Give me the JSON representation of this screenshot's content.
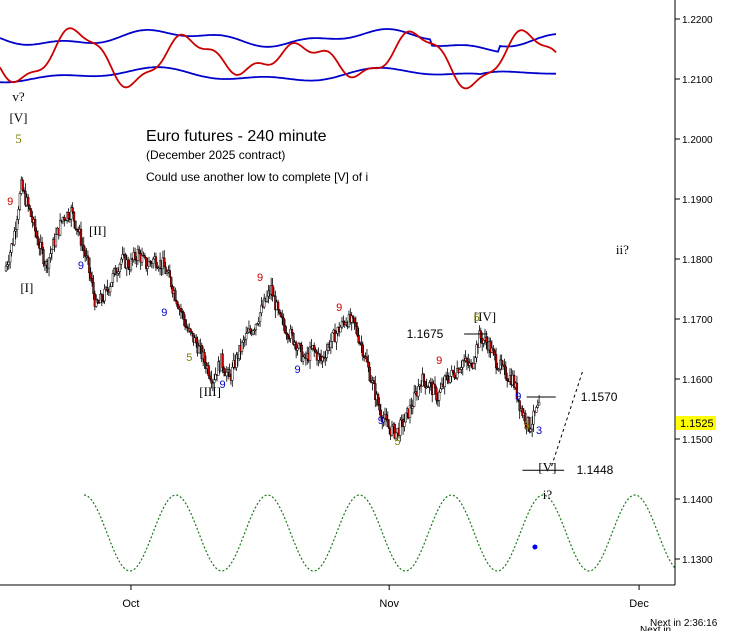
{
  "chart_data": {
    "type": "candlestick",
    "title": "Euro futures - 240 minute",
    "subtitle": "(December 2025 contract)",
    "note": "Could use another low to complete [V] of i",
    "y_axis": {
      "ylim": [
        1.125,
        1.2245
      ],
      "ticks": [
        "1.2200",
        "1.2100",
        "1.2000",
        "1.1900",
        "1.1800",
        "1.1700",
        "1.1600",
        "1.1500",
        "1.1400",
        "1.1300"
      ],
      "position": "right"
    },
    "x_axis": {
      "ticks": [
        {
          "label": "Oct",
          "day": 15
        },
        {
          "label": "Nov",
          "day": 46
        },
        {
          "label": "Dec",
          "day": 76
        }
      ],
      "cut_label": "Next in 2:36:16",
      "corner_label": "Next in"
    },
    "current_price": {
      "label": "1.1525",
      "value": 1.1525,
      "color": "#ffff00"
    },
    "price_path": [
      [
        0,
        1.178
      ],
      [
        1,
        1.183
      ],
      [
        2,
        1.192
      ],
      [
        3,
        1.188
      ],
      [
        4,
        1.183
      ],
      [
        5,
        1.179
      ],
      [
        6,
        1.183
      ],
      [
        7,
        1.187
      ],
      [
        8,
        1.188
      ],
      [
        9,
        1.184
      ],
      [
        10,
        1.179
      ],
      [
        11,
        1.172
      ],
      [
        12,
        1.174
      ],
      [
        13,
        1.177
      ],
      [
        14,
        1.18
      ],
      [
        15,
        1.179
      ],
      [
        16,
        1.181
      ],
      [
        17,
        1.179
      ],
      [
        18,
        1.18
      ],
      [
        19,
        1.179
      ],
      [
        20,
        1.176
      ],
      [
        21,
        1.172
      ],
      [
        22,
        1.168
      ],
      [
        23,
        1.166
      ],
      [
        24,
        1.163
      ],
      [
        25,
        1.16
      ],
      [
        26,
        1.163
      ],
      [
        27,
        1.16
      ],
      [
        28,
        1.164
      ],
      [
        29,
        1.167
      ],
      [
        30,
        1.169
      ],
      [
        31,
        1.172
      ],
      [
        32,
        1.175
      ],
      [
        33,
        1.17
      ],
      [
        34,
        1.168
      ],
      [
        35,
        1.166
      ],
      [
        36,
        1.163
      ],
      [
        37,
        1.165
      ],
      [
        38,
        1.163
      ],
      [
        39,
        1.166
      ],
      [
        40,
        1.168
      ],
      [
        41,
        1.17
      ],
      [
        42,
        1.169
      ],
      [
        43,
        1.165
      ],
      [
        44,
        1.16
      ],
      [
        45,
        1.155
      ],
      [
        46,
        1.152
      ],
      [
        47,
        1.151
      ],
      [
        48,
        1.153
      ],
      [
        49,
        1.156
      ],
      [
        50,
        1.16
      ],
      [
        51,
        1.159
      ],
      [
        52,
        1.157
      ],
      [
        53,
        1.16
      ],
      [
        54,
        1.161
      ],
      [
        55,
        1.163
      ],
      [
        56,
        1.162
      ],
      [
        57,
        1.167
      ],
      [
        58,
        1.166
      ],
      [
        59,
        1.163
      ],
      [
        60,
        1.161
      ],
      [
        61,
        1.16
      ],
      [
        62,
        1.155
      ],
      [
        63,
        1.152
      ],
      [
        64,
        1.155
      ]
    ],
    "series": [
      {
        "name": "",
        "color": "#cc0000",
        "kind": "oscillator"
      },
      {
        "name": "",
        "color": "#0000cc",
        "kind": "band"
      },
      {
        "name": "",
        "color": "#1a7a1a",
        "kind": "cycle"
      }
    ],
    "wave_labels": [
      {
        "text": "v?",
        "day": 1.5,
        "price": 1.2063,
        "color": "#000000"
      },
      {
        "text": "[V]",
        "day": 1.5,
        "price": 1.2028,
        "color": "#000000"
      },
      {
        "text": "5",
        "day": 1.5,
        "price": 1.1993,
        "color": "#808000"
      },
      {
        "text": "[I]",
        "day": 2.5,
        "price": 1.1745,
        "color": "#000000"
      },
      {
        "text": "[II]",
        "day": 11.0,
        "price": 1.184,
        "color": "#000000"
      },
      {
        "text": "[III]",
        "day": 24.5,
        "price": 1.1572,
        "color": "#000000"
      },
      {
        "text": "[IV]",
        "day": 57.5,
        "price": 1.1697,
        "color": "#000000"
      },
      {
        "text": "[V]",
        "day": 65.0,
        "price": 1.1446,
        "color": "#000000"
      },
      {
        "text": "i?",
        "day": 65.0,
        "price": 1.14,
        "color": "#000000"
      },
      {
        "text": "ii?",
        "day": 74.0,
        "price": 1.1808,
        "color": "#000000"
      }
    ],
    "count_labels": [
      {
        "text": "9",
        "day": 0.5,
        "price": 1.189,
        "color": "#cc0000"
      },
      {
        "text": "9",
        "day": 9.0,
        "price": 1.1783,
        "color": "#0000cc"
      },
      {
        "text": "9",
        "day": 19.0,
        "price": 1.1705,
        "color": "#0000cc"
      },
      {
        "text": "5",
        "day": 22.0,
        "price": 1.163,
        "color": "#808000"
      },
      {
        "text": "9",
        "day": 26.0,
        "price": 1.1585,
        "color": "#0000cc"
      },
      {
        "text": "9",
        "day": 30.5,
        "price": 1.1763,
        "color": "#cc0000"
      },
      {
        "text": "9",
        "day": 35.0,
        "price": 1.161,
        "color": "#0000cc"
      },
      {
        "text": "9",
        "day": 40.0,
        "price": 1.1713,
        "color": "#cc0000"
      },
      {
        "text": "9",
        "day": 45.0,
        "price": 1.1525,
        "color": "#0000cc"
      },
      {
        "text": "5",
        "day": 47.0,
        "price": 1.149,
        "color": "#808000"
      },
      {
        "text": "9",
        "day": 52.0,
        "price": 1.1625,
        "color": "#cc0000"
      },
      {
        "text": "5",
        "day": 56.5,
        "price": 1.1697,
        "color": "#808000"
      },
      {
        "text": "9",
        "day": 61.5,
        "price": 1.1565,
        "color": "#0000cc"
      },
      {
        "text": "5",
        "day": 62.5,
        "price": 1.1517,
        "color": "#808000"
      },
      {
        "text": "3",
        "day": 64.0,
        "price": 1.1508,
        "color": "#0000cc"
      }
    ],
    "price_levels": [
      {
        "label": "1.1675",
        "value": 1.1675,
        "day_from": 55.0,
        "day_to": 57.8,
        "label_day": 52.5,
        "label_side": "left"
      },
      {
        "label": "1.1570",
        "value": 1.157,
        "day_from": 62.5,
        "day_to": 66.0,
        "label_day": 69.0,
        "label_side": "right"
      },
      {
        "label": "1.1448",
        "value": 1.1448,
        "day_from": 62.0,
        "day_to": 67.0,
        "label_day": 68.5,
        "label_side": "right"
      }
    ],
    "projection": {
      "from": [
        65.5,
        1.1455
      ],
      "to": [
        69.2,
        1.1612
      ]
    },
    "marker": {
      "day": 63.5,
      "price": 1.132,
      "color": "#0000ff"
    },
    "grid": false
  }
}
